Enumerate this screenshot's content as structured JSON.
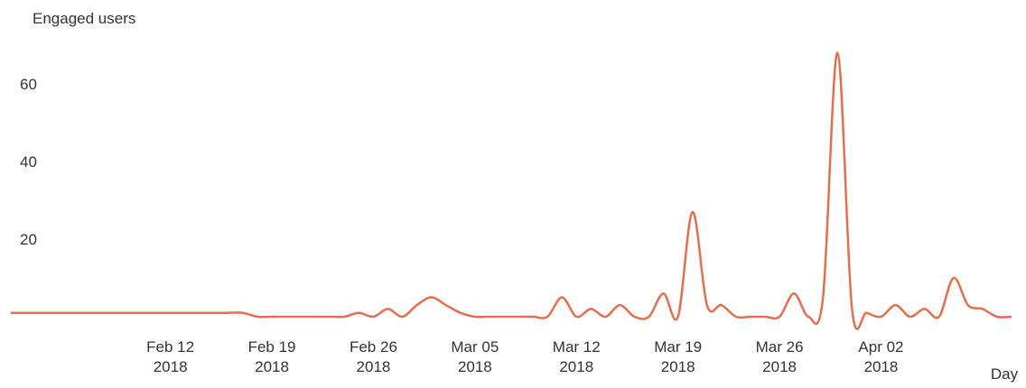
{
  "chart_data": {
    "type": "line",
    "title": "Engaged users",
    "x_label": "Day",
    "x": [
      "2018-02-01",
      "2018-02-02",
      "2018-02-03",
      "2018-02-04",
      "2018-02-05",
      "2018-02-06",
      "2018-02-07",
      "2018-02-08",
      "2018-02-09",
      "2018-02-10",
      "2018-02-11",
      "2018-02-12",
      "2018-02-13",
      "2018-02-14",
      "2018-02-15",
      "2018-02-16",
      "2018-02-17",
      "2018-02-18",
      "2018-02-19",
      "2018-02-20",
      "2018-02-21",
      "2018-02-22",
      "2018-02-23",
      "2018-02-24",
      "2018-02-25",
      "2018-02-26",
      "2018-02-27",
      "2018-02-28",
      "2018-03-01",
      "2018-03-02",
      "2018-03-03",
      "2018-03-04",
      "2018-03-05",
      "2018-03-06",
      "2018-03-07",
      "2018-03-08",
      "2018-03-09",
      "2018-03-10",
      "2018-03-11",
      "2018-03-12",
      "2018-03-13",
      "2018-03-14",
      "2018-03-15",
      "2018-03-16",
      "2018-03-17",
      "2018-03-18",
      "2018-03-19",
      "2018-03-20",
      "2018-03-21",
      "2018-03-22",
      "2018-03-23",
      "2018-03-24",
      "2018-03-25",
      "2018-03-26",
      "2018-03-27",
      "2018-03-28",
      "2018-03-29",
      "2018-03-30",
      "2018-03-31",
      "2018-04-01",
      "2018-04-02",
      "2018-04-03",
      "2018-04-04",
      "2018-04-05",
      "2018-04-06",
      "2018-04-07",
      "2018-04-08",
      "2018-04-09",
      "2018-04-10",
      "2018-04-11"
    ],
    "series": [
      {
        "name": "Engaged users",
        "color": "#e2704f",
        "values": [
          1,
          1,
          1,
          1,
          1,
          1,
          1,
          1,
          1,
          1,
          1,
          1,
          1,
          1,
          1,
          1,
          1,
          0,
          0,
          0,
          0,
          0,
          0,
          0,
          1,
          0,
          2,
          0,
          3,
          5,
          3,
          1,
          0,
          0,
          0,
          0,
          0,
          0,
          5,
          0,
          2,
          0,
          3,
          0,
          0,
          6,
          0,
          27,
          3,
          3,
          0,
          0,
          0,
          0,
          6,
          0,
          5,
          68,
          2,
          1,
          0,
          3,
          0,
          2,
          0,
          10,
          3,
          2,
          0,
          0
        ]
      }
    ],
    "xlim": [
      "2018-02-01",
      "2018-04-11"
    ],
    "xticks": [
      {
        "value": "2018-02-12",
        "label": "Feb 12 2018"
      },
      {
        "value": "2018-02-19",
        "label": "Feb 19 2018"
      },
      {
        "value": "2018-02-26",
        "label": "Feb 26 2018"
      },
      {
        "value": "2018-03-05",
        "label": "Mar 05 2018"
      },
      {
        "value": "2018-03-12",
        "label": "Mar 12 2018"
      },
      {
        "value": "2018-03-19",
        "label": "Mar 19 2018"
      },
      {
        "value": "2018-03-26",
        "label": "Mar 26 2018"
      },
      {
        "value": "2018-04-02",
        "label": "Apr 02 2018"
      }
    ],
    "ylim": [
      0,
      70
    ],
    "yticks": [
      20,
      40,
      60
    ],
    "grid": false
  }
}
